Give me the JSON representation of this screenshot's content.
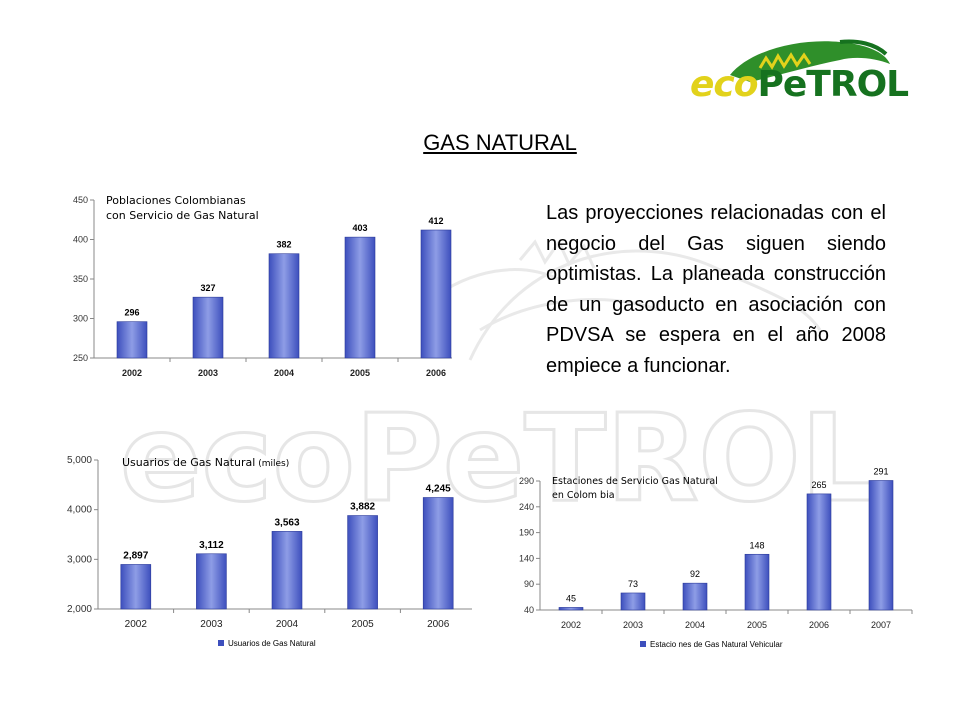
{
  "title": "GAS NATURAL",
  "logo": {
    "eco": "eco",
    "petrol": "PeTROL"
  },
  "paragraph": "Las proyecciones relacionadas con el negocio del Gas siguen siendo optimistas.  La planeada construcción de un gasoducto en asociación con PDVSA se espera en el año 2008 empiece a funcionar.",
  "colors": {
    "bar": "#3d4fbd",
    "bar_light": "#8e9de6",
    "logo_yellow": "#e2d21b",
    "logo_green": "#16721f"
  },
  "chart_data": [
    {
      "type": "bar",
      "title": "Poblaciones Colombianas con Servicio de Gas Natural",
      "title_lines": [
        "Poblaciones Colombianas",
        "con Servicio de Gas Natural"
      ],
      "title_suffix": "",
      "categories": [
        "2002",
        "2003",
        "2004",
        "2005",
        "2006"
      ],
      "values": [
        296,
        327,
        382,
        403,
        412
      ],
      "value_labels": [
        "296",
        "327",
        "382",
        "403",
        "412"
      ],
      "ylim": [
        250,
        450
      ],
      "yticks": [
        250,
        300,
        350,
        400,
        450
      ],
      "ytick_labels": [
        "250",
        "300",
        "350",
        "400",
        "450"
      ],
      "legend": "",
      "grid": false
    },
    {
      "type": "bar",
      "title": "Usuarios de Gas Natural (miles)",
      "title_lines": [
        "Usuarios de Gas Natural"
      ],
      "title_suffix": "(miles)",
      "categories": [
        "2002",
        "2003",
        "2004",
        "2005",
        "2006"
      ],
      "values": [
        2897,
        3112,
        3563,
        3882,
        4245
      ],
      "value_labels": [
        "2,897",
        "3,112",
        "3,563",
        "3,882",
        "4,245"
      ],
      "ylim": [
        2000,
        5000
      ],
      "yticks": [
        2000,
        3000,
        4000,
        5000
      ],
      "ytick_labels": [
        "2,000",
        "3,000",
        "4,000",
        "5,000"
      ],
      "legend": "Usuarios de Gas Natural",
      "grid": false
    },
    {
      "type": "bar",
      "title": "Estaciones de Servicio Gas Natural en Colom bia",
      "title_lines": [
        "Estaciones de Servicio Gas Natural",
        "en Colom bia"
      ],
      "title_suffix": "",
      "categories": [
        "2002",
        "2003",
        "2004",
        "2005",
        "2006",
        "2007"
      ],
      "values": [
        45,
        73,
        92,
        148,
        265,
        291
      ],
      "value_labels": [
        "45",
        "73",
        "92",
        "148",
        "265",
        "291"
      ],
      "ylim": [
        40,
        290
      ],
      "yticks": [
        40,
        90,
        140,
        190,
        240,
        290
      ],
      "ytick_labels": [
        "40",
        "90",
        "140",
        "190",
        "240",
        "290"
      ],
      "legend": "Estacio nes de Gas Natural Vehicular",
      "grid": false
    }
  ]
}
